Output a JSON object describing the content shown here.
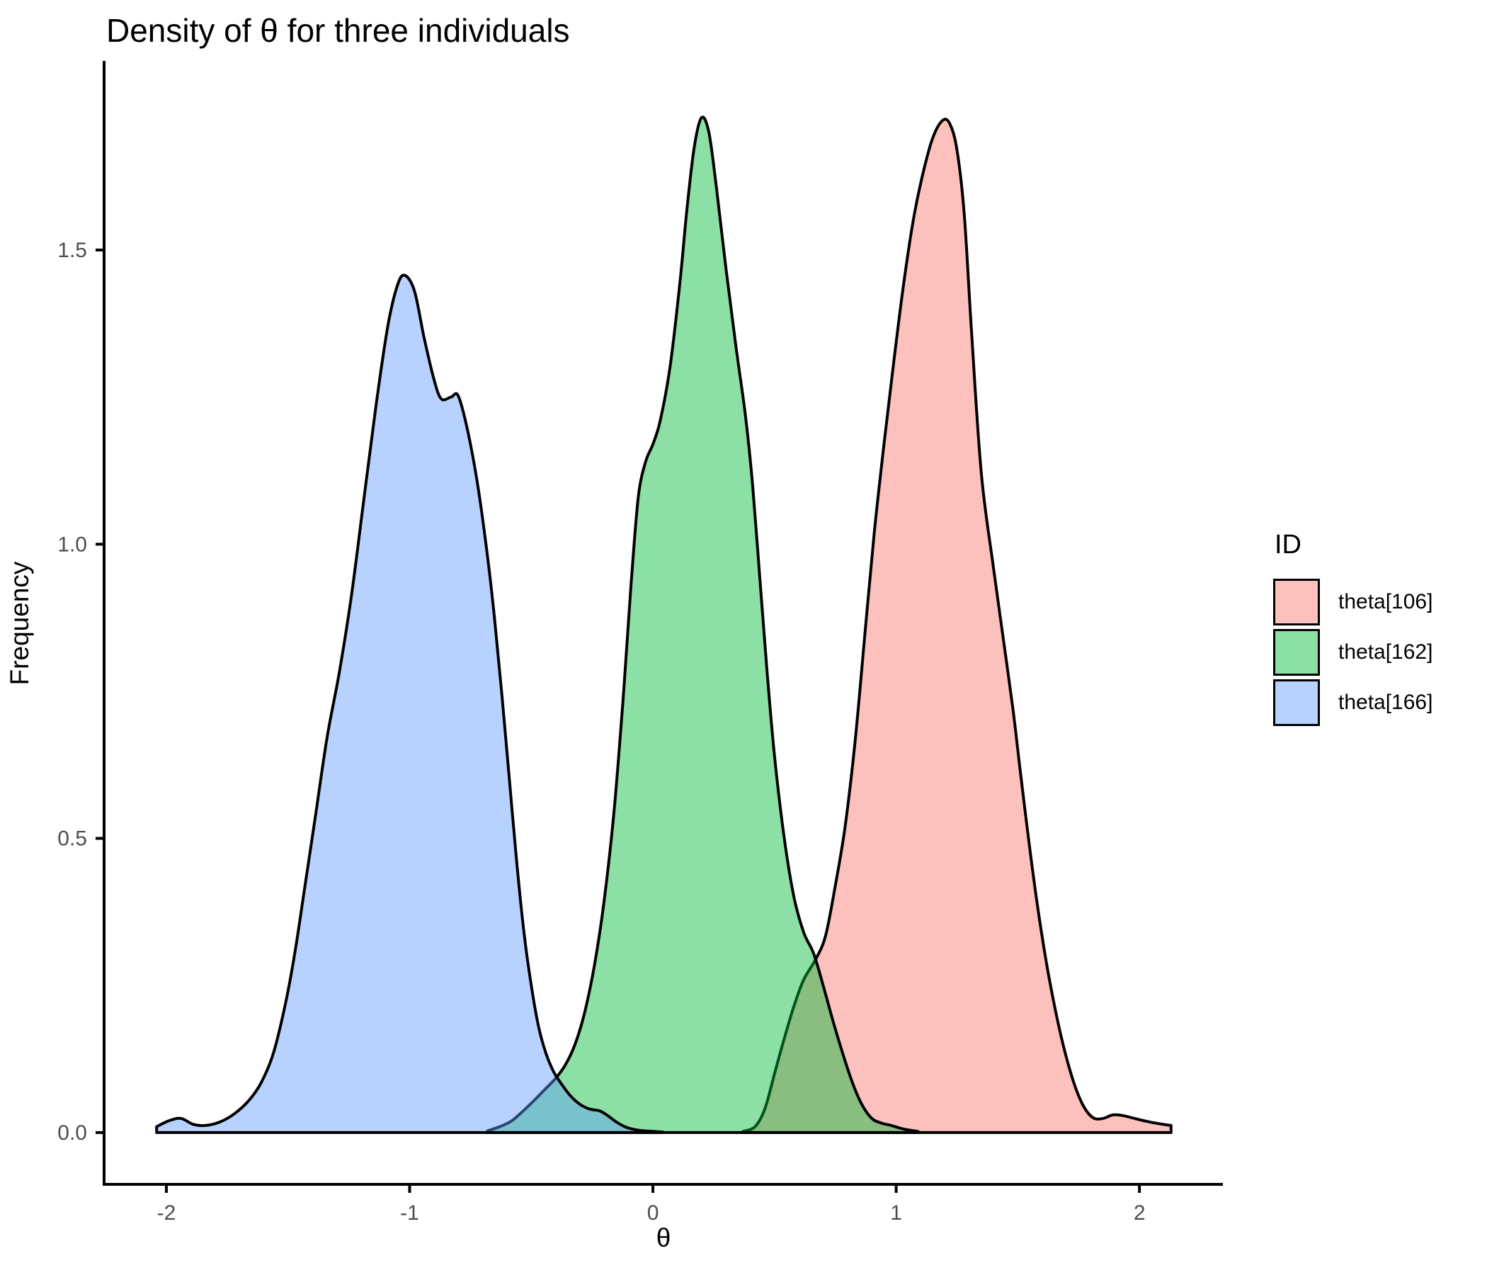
{
  "title": "Density of θ for three individuals",
  "legend": {
    "title": "ID",
    "entries": [
      {
        "label": "theta[106]"
      },
      {
        "label": "theta[162]"
      },
      {
        "label": "theta[166]"
      }
    ]
  },
  "chart_data": {
    "type": "area",
    "subtype": "density",
    "title": "Density of θ for three individuals",
    "xlabel": "θ",
    "ylabel": "Frequency",
    "xlim": [
      -2.256,
      2.343
    ],
    "ylim": [
      -0.088,
      1.819
    ],
    "grid": false,
    "legend_position": "right",
    "x_ticks": [
      {
        "value": -2,
        "label": "-2"
      },
      {
        "value": -1,
        "label": "-1"
      },
      {
        "value": 0,
        "label": "0"
      },
      {
        "value": 1,
        "label": "1"
      },
      {
        "value": 2,
        "label": "2"
      }
    ],
    "y_ticks": [
      {
        "value": 0,
        "label": "0.0"
      },
      {
        "value": 0.5,
        "label": "0.5"
      },
      {
        "value": 1,
        "label": "1.0"
      },
      {
        "value": 1.5,
        "label": "1.5"
      }
    ],
    "style": {
      "fill_alpha": 0.45,
      "stroke_color": "#000000",
      "stroke_width": 4,
      "axis_color": "#000000",
      "tick_label_color": "#4d4d4d",
      "tick_label_size": 30,
      "axis_title_size": 37
    },
    "series": [
      {
        "name": "theta[106]",
        "color": "#F8766D",
        "peak": {
          "x": 1.2,
          "y": 1.72
        },
        "points": [
          [
            0.37,
            0.002
          ],
          [
            0.42,
            0.01
          ],
          [
            0.46,
            0.04
          ],
          [
            0.5,
            0.1
          ],
          [
            0.54,
            0.16
          ],
          [
            0.58,
            0.215
          ],
          [
            0.62,
            0.26
          ],
          [
            0.67,
            0.295
          ],
          [
            0.71,
            0.335
          ],
          [
            0.75,
            0.42
          ],
          [
            0.79,
            0.52
          ],
          [
            0.83,
            0.66
          ],
          [
            0.87,
            0.84
          ],
          [
            0.91,
            1.02
          ],
          [
            0.95,
            1.17
          ],
          [
            0.99,
            1.31
          ],
          [
            1.03,
            1.44
          ],
          [
            1.07,
            1.55
          ],
          [
            1.11,
            1.63
          ],
          [
            1.15,
            1.69
          ],
          [
            1.19,
            1.72
          ],
          [
            1.22,
            1.715
          ],
          [
            1.25,
            1.67
          ],
          [
            1.28,
            1.56
          ],
          [
            1.31,
            1.36
          ],
          [
            1.35,
            1.12
          ],
          [
            1.4,
            0.96
          ],
          [
            1.44,
            0.84
          ],
          [
            1.48,
            0.72
          ],
          [
            1.51,
            0.615
          ],
          [
            1.55,
            0.48
          ],
          [
            1.59,
            0.36
          ],
          [
            1.63,
            0.26
          ],
          [
            1.68,
            0.16
          ],
          [
            1.73,
            0.085
          ],
          [
            1.77,
            0.045
          ],
          [
            1.81,
            0.025
          ],
          [
            1.85,
            0.024
          ],
          [
            1.89,
            0.03
          ],
          [
            1.93,
            0.029
          ],
          [
            1.98,
            0.024
          ],
          [
            2.03,
            0.019
          ],
          [
            2.08,
            0.015
          ],
          [
            2.13,
            0.012
          ]
        ]
      },
      {
        "name": "theta[162]",
        "color": "#00BA38",
        "peak": {
          "x": 0.2,
          "y": 1.73
        },
        "points": [
          [
            -0.68,
            0.003
          ],
          [
            -0.63,
            0.01
          ],
          [
            -0.58,
            0.02
          ],
          [
            -0.53,
            0.038
          ],
          [
            -0.48,
            0.058
          ],
          [
            -0.44,
            0.075
          ],
          [
            -0.4,
            0.092
          ],
          [
            -0.36,
            0.115
          ],
          [
            -0.32,
            0.15
          ],
          [
            -0.28,
            0.205
          ],
          [
            -0.24,
            0.285
          ],
          [
            -0.2,
            0.395
          ],
          [
            -0.16,
            0.545
          ],
          [
            -0.12,
            0.75
          ],
          [
            -0.09,
            0.93
          ],
          [
            -0.06,
            1.08
          ],
          [
            -0.03,
            1.14
          ],
          [
            0.0,
            1.17
          ],
          [
            0.03,
            1.21
          ],
          [
            0.07,
            1.3
          ],
          [
            0.11,
            1.44
          ],
          [
            0.14,
            1.57
          ],
          [
            0.17,
            1.675
          ],
          [
            0.2,
            1.725
          ],
          [
            0.23,
            1.7
          ],
          [
            0.26,
            1.61
          ],
          [
            0.3,
            1.47
          ],
          [
            0.34,
            1.34
          ],
          [
            0.38,
            1.22
          ],
          [
            0.41,
            1.1
          ],
          [
            0.44,
            0.94
          ],
          [
            0.47,
            0.78
          ],
          [
            0.5,
            0.64
          ],
          [
            0.54,
            0.5
          ],
          [
            0.58,
            0.4
          ],
          [
            0.62,
            0.34
          ],
          [
            0.66,
            0.305
          ],
          [
            0.7,
            0.25
          ],
          [
            0.74,
            0.19
          ],
          [
            0.78,
            0.135
          ],
          [
            0.82,
            0.085
          ],
          [
            0.86,
            0.047
          ],
          [
            0.9,
            0.024
          ],
          [
            0.94,
            0.016
          ],
          [
            0.98,
            0.012
          ],
          [
            1.03,
            0.006
          ],
          [
            1.09,
            0.002
          ]
        ]
      },
      {
        "name": "theta[166]",
        "color": "#619CFF",
        "peak": {
          "x": -1.03,
          "y": 1.46
        },
        "points": [
          [
            -2.04,
            0.01
          ],
          [
            -1.99,
            0.02
          ],
          [
            -1.94,
            0.024
          ],
          [
            -1.89,
            0.014
          ],
          [
            -1.84,
            0.012
          ],
          [
            -1.78,
            0.018
          ],
          [
            -1.72,
            0.032
          ],
          [
            -1.66,
            0.055
          ],
          [
            -1.61,
            0.085
          ],
          [
            -1.56,
            0.135
          ],
          [
            -1.51,
            0.22
          ],
          [
            -1.47,
            0.31
          ],
          [
            -1.43,
            0.42
          ],
          [
            -1.39,
            0.53
          ],
          [
            -1.34,
            0.67
          ],
          [
            -1.29,
            0.78
          ],
          [
            -1.24,
            0.91
          ],
          [
            -1.19,
            1.07
          ],
          [
            -1.14,
            1.23
          ],
          [
            -1.09,
            1.37
          ],
          [
            -1.05,
            1.44
          ],
          [
            -1.02,
            1.457
          ],
          [
            -0.98,
            1.43
          ],
          [
            -0.94,
            1.35
          ],
          [
            -0.9,
            1.28
          ],
          [
            -0.87,
            1.247
          ],
          [
            -0.83,
            1.25
          ],
          [
            -0.8,
            1.252
          ],
          [
            -0.76,
            1.19
          ],
          [
            -0.72,
            1.1
          ],
          [
            -0.68,
            0.98
          ],
          [
            -0.65,
            0.87
          ],
          [
            -0.62,
            0.74
          ],
          [
            -0.59,
            0.6
          ],
          [
            -0.56,
            0.46
          ],
          [
            -0.53,
            0.34
          ],
          [
            -0.5,
            0.25
          ],
          [
            -0.47,
            0.18
          ],
          [
            -0.44,
            0.135
          ],
          [
            -0.41,
            0.105
          ],
          [
            -0.38,
            0.085
          ],
          [
            -0.34,
            0.063
          ],
          [
            -0.3,
            0.048
          ],
          [
            -0.26,
            0.04
          ],
          [
            -0.22,
            0.037
          ],
          [
            -0.19,
            0.03
          ],
          [
            -0.15,
            0.018
          ],
          [
            -0.11,
            0.009
          ],
          [
            -0.06,
            0.004
          ],
          [
            0.0,
            0.002
          ],
          [
            0.04,
            0.001
          ]
        ]
      }
    ]
  }
}
